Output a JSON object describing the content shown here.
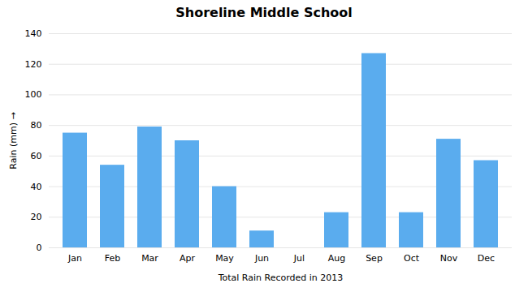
{
  "chart_data": {
    "type": "bar",
    "title": "Shoreline Middle School",
    "xlabel": "Total Rain Recorded in 2013",
    "ylabel": "Rain (mm)",
    "categories": [
      "Jan",
      "Feb",
      "Mar",
      "Apr",
      "May",
      "Jun",
      "Jul",
      "Aug",
      "Sep",
      "Oct",
      "Nov",
      "Dec"
    ],
    "values": [
      75,
      54,
      79,
      70,
      40,
      11,
      0,
      23,
      127,
      23,
      71,
      57
    ],
    "color": "#5aacee",
    "ylim": [
      0,
      140
    ],
    "yticks": [
      0,
      20,
      40,
      60,
      80,
      100,
      120,
      140
    ],
    "grid": true
  }
}
